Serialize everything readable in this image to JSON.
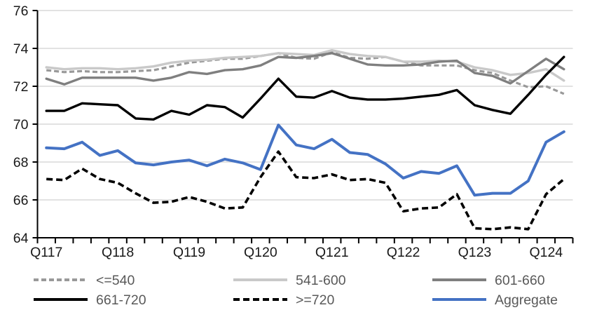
{
  "chart_data": {
    "type": "line",
    "title": "",
    "xlabel": "",
    "ylabel": "",
    "ylim": [
      64,
      76
    ],
    "y_ticks": [
      64,
      66,
      68,
      70,
      72,
      74,
      76
    ],
    "grid": "horizontal",
    "legend_position": "bottom",
    "x_tick_labels": [
      "Q117",
      "Q118",
      "Q119",
      "Q120",
      "Q121",
      "Q122",
      "Q123",
      "Q124"
    ],
    "categories": [
      "Q117",
      "Q217",
      "Q317",
      "Q417",
      "Q118",
      "Q218",
      "Q318",
      "Q418",
      "Q119",
      "Q219",
      "Q319",
      "Q419",
      "Q120",
      "Q220",
      "Q320",
      "Q420",
      "Q121",
      "Q221",
      "Q321",
      "Q421",
      "Q122",
      "Q222",
      "Q322",
      "Q422",
      "Q123",
      "Q223",
      "Q323",
      "Q423",
      "Q124",
      "Q224"
    ],
    "series": [
      {
        "name": "<=540",
        "color": "#999999",
        "dash": "7 4",
        "width": 3.2,
        "values": [
          72.85,
          72.75,
          72.8,
          72.75,
          72.75,
          72.8,
          72.85,
          73.05,
          73.25,
          73.35,
          73.45,
          73.45,
          73.6,
          73.75,
          73.5,
          73.45,
          73.8,
          73.5,
          73.45,
          73.55,
          73.3,
          73.1,
          73.1,
          73.1,
          72.85,
          72.7,
          72.3,
          71.95,
          72.0,
          71.6
        ]
      },
      {
        "name": "541-600",
        "color": "#C9C9C9",
        "dash": null,
        "width": 3.4,
        "values": [
          73.0,
          72.9,
          72.95,
          72.95,
          72.9,
          72.95,
          73.05,
          73.25,
          73.35,
          73.4,
          73.5,
          73.55,
          73.6,
          73.75,
          73.7,
          73.65,
          73.9,
          73.7,
          73.6,
          73.55,
          73.3,
          73.3,
          73.35,
          73.3,
          73.0,
          72.85,
          72.6,
          72.7,
          72.9,
          72.3
        ]
      },
      {
        "name": "601-660",
        "color": "#7F7F7F",
        "dash": null,
        "width": 3.4,
        "values": [
          72.4,
          72.1,
          72.45,
          72.45,
          72.45,
          72.45,
          72.3,
          72.45,
          72.75,
          72.65,
          72.85,
          72.9,
          73.1,
          73.55,
          73.5,
          73.6,
          73.75,
          73.45,
          73.15,
          73.1,
          73.1,
          73.15,
          73.3,
          73.35,
          72.7,
          72.55,
          72.15,
          72.8,
          73.45,
          72.9
        ]
      },
      {
        "name": "661-720",
        "color": "#000000",
        "dash": null,
        "width": 3.4,
        "values": [
          70.7,
          70.7,
          71.1,
          71.05,
          71.0,
          70.3,
          70.25,
          70.7,
          70.5,
          71.0,
          70.9,
          70.35,
          71.35,
          72.4,
          71.45,
          71.4,
          71.75,
          71.4,
          71.3,
          71.3,
          71.35,
          71.45,
          71.55,
          71.8,
          71.0,
          70.75,
          70.55,
          71.55,
          72.6,
          73.55
        ]
      },
      {
        "name": ">=720",
        "color": "#000000",
        "dash": "9 5",
        "width": 3.6,
        "values": [
          67.1,
          67.05,
          67.65,
          67.1,
          66.9,
          66.35,
          65.85,
          65.9,
          66.15,
          65.9,
          65.55,
          65.6,
          67.2,
          68.55,
          67.2,
          67.15,
          67.35,
          67.05,
          67.1,
          66.9,
          65.4,
          65.55,
          65.6,
          66.3,
          64.5,
          64.45,
          64.55,
          64.45,
          66.3,
          67.1
        ]
      },
      {
        "name": "Aggregate",
        "color": "#4472C4",
        "dash": null,
        "width": 4,
        "values": [
          68.75,
          68.7,
          69.05,
          68.35,
          68.6,
          67.95,
          67.85,
          68.0,
          68.1,
          67.8,
          68.15,
          67.95,
          67.6,
          69.95,
          68.9,
          68.7,
          69.2,
          68.5,
          68.4,
          67.9,
          67.15,
          67.5,
          67.4,
          67.8,
          66.25,
          66.35,
          66.35,
          67.0,
          69.05,
          69.6
        ]
      }
    ]
  },
  "colors": {
    "background": "#FFFFFF",
    "gridline": "#D9D9D9",
    "axis": "#000000",
    "tick_label": "#1A1A1A",
    "legend_text": "#595959",
    "aggregate_blue": "#4472C4"
  }
}
